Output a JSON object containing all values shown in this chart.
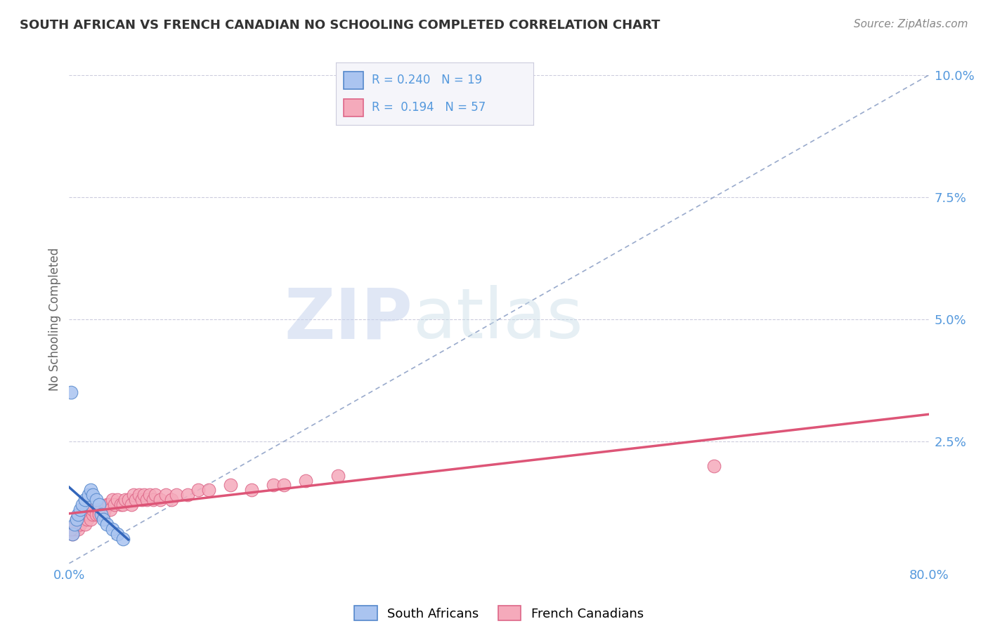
{
  "title": "SOUTH AFRICAN VS FRENCH CANADIAN NO SCHOOLING COMPLETED CORRELATION CHART",
  "source": "Source: ZipAtlas.com",
  "ylabel": "No Schooling Completed",
  "watermark_zip": "ZIP",
  "watermark_atlas": "atlas",
  "xlim": [
    0.0,
    0.8
  ],
  "ylim": [
    0.0,
    0.1
  ],
  "xticks": [
    0.0,
    0.1,
    0.2,
    0.3,
    0.4,
    0.5,
    0.6,
    0.7,
    0.8
  ],
  "xticklabels": [
    "0.0%",
    "",
    "",
    "",
    "",
    "",
    "",
    "",
    "80.0%"
  ],
  "yticks": [
    0.0,
    0.025,
    0.05,
    0.075,
    0.1
  ],
  "yticklabels": [
    "",
    "2.5%",
    "5.0%",
    "7.5%",
    "10.0%"
  ],
  "r_sa": 0.24,
  "n_sa": 19,
  "r_fc": 0.194,
  "n_fc": 57,
  "color_sa_fill": "#aac4f0",
  "color_sa_edge": "#5588cc",
  "color_fc_fill": "#f5aabb",
  "color_fc_edge": "#dd6688",
  "color_sa_line": "#3366bb",
  "color_fc_line": "#dd5577",
  "sa_points_x": [
    0.003,
    0.005,
    0.007,
    0.008,
    0.01,
    0.012,
    0.015,
    0.018,
    0.02,
    0.022,
    0.025,
    0.028,
    0.03,
    0.032,
    0.035,
    0.04,
    0.045,
    0.05,
    0.002
  ],
  "sa_points_y": [
    0.006,
    0.008,
    0.009,
    0.01,
    0.011,
    0.012,
    0.013,
    0.014,
    0.015,
    0.014,
    0.013,
    0.012,
    0.01,
    0.009,
    0.008,
    0.007,
    0.006,
    0.005,
    0.035
  ],
  "fc_points_x": [
    0.003,
    0.005,
    0.006,
    0.007,
    0.008,
    0.01,
    0.01,
    0.012,
    0.013,
    0.015,
    0.015,
    0.017,
    0.018,
    0.02,
    0.022,
    0.022,
    0.025,
    0.027,
    0.028,
    0.03,
    0.032,
    0.033,
    0.035,
    0.037,
    0.038,
    0.04,
    0.042,
    0.045,
    0.048,
    0.05,
    0.052,
    0.055,
    0.058,
    0.06,
    0.062,
    0.065,
    0.068,
    0.07,
    0.072,
    0.075,
    0.078,
    0.08,
    0.085,
    0.09,
    0.095,
    0.1,
    0.11,
    0.12,
    0.13,
    0.15,
    0.17,
    0.19,
    0.2,
    0.22,
    0.25,
    0.6,
    0.002
  ],
  "fc_points_y": [
    0.006,
    0.007,
    0.008,
    0.009,
    0.007,
    0.008,
    0.01,
    0.009,
    0.01,
    0.008,
    0.01,
    0.009,
    0.01,
    0.009,
    0.01,
    0.011,
    0.01,
    0.011,
    0.01,
    0.011,
    0.01,
    0.011,
    0.012,
    0.012,
    0.011,
    0.013,
    0.012,
    0.013,
    0.012,
    0.012,
    0.013,
    0.013,
    0.012,
    0.014,
    0.013,
    0.014,
    0.013,
    0.014,
    0.013,
    0.014,
    0.013,
    0.014,
    0.013,
    0.014,
    0.013,
    0.014,
    0.014,
    0.015,
    0.015,
    0.016,
    0.015,
    0.016,
    0.016,
    0.017,
    0.018,
    0.02,
    0.007
  ],
  "background_color": "#ffffff",
  "grid_color": "#ccccdd",
  "title_color": "#333333",
  "tick_color": "#5599dd",
  "legend_bg": "#f5f5fa",
  "legend_border": "#ccccdd"
}
